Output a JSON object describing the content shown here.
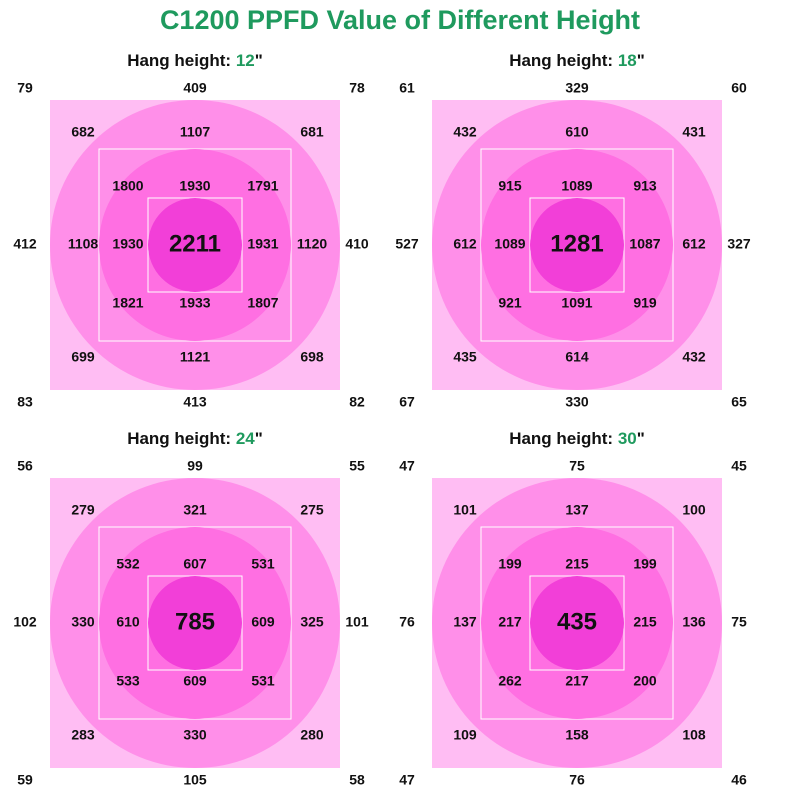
{
  "header": {
    "title": "C1200 PPFD Value of Different Height"
  },
  "panels": [
    {
      "label": "Hang height:",
      "height": "12",
      "unit": "\"",
      "rows": [
        [
          79,
          409,
          78
        ],
        [
          682,
          1107,
          681
        ],
        [
          1800,
          1930,
          1791
        ],
        [
          412,
          1108,
          1930,
          2211,
          1931,
          1120,
          410
        ],
        [
          1821,
          1933,
          1807
        ],
        [
          699,
          1121,
          698
        ],
        [
          83,
          413,
          82
        ]
      ]
    },
    {
      "label": "Hang height:",
      "height": "18",
      "unit": "\"",
      "rows": [
        [
          61,
          329,
          60
        ],
        [
          432,
          610,
          431
        ],
        [
          915,
          1089,
          913
        ],
        [
          527,
          612,
          1089,
          1281,
          1087,
          612,
          327
        ],
        [
          921,
          1091,
          919
        ],
        [
          435,
          614,
          432
        ],
        [
          67,
          330,
          65
        ]
      ]
    },
    {
      "label": "Hang height:",
      "height": "24",
      "unit": "\"",
      "rows": [
        [
          56,
          99,
          55
        ],
        [
          279,
          321,
          275
        ],
        [
          532,
          607,
          531
        ],
        [
          102,
          330,
          610,
          785,
          609,
          325,
          101
        ],
        [
          533,
          609,
          531
        ],
        [
          283,
          330,
          280
        ],
        [
          59,
          105,
          58
        ]
      ]
    },
    {
      "label": "Hang height:",
      "height": "30",
      "unit": "\"",
      "rows": [
        [
          47,
          75,
          45
        ],
        [
          101,
          137,
          100
        ],
        [
          199,
          215,
          199
        ],
        [
          76,
          137,
          217,
          435,
          215,
          136,
          75
        ],
        [
          262,
          217,
          200
        ],
        [
          109,
          158,
          108
        ],
        [
          47,
          76,
          46
        ]
      ]
    }
  ]
}
